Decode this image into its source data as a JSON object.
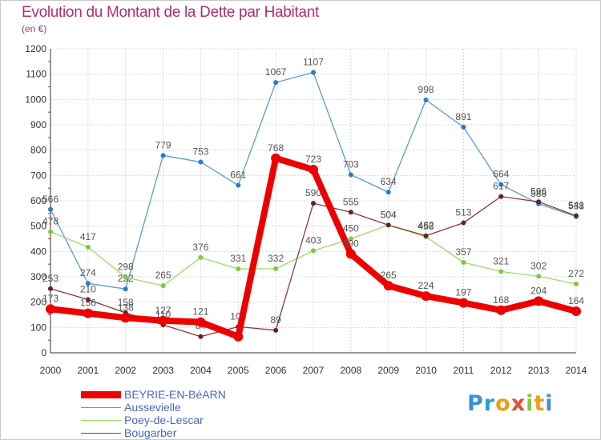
{
  "chart_data": {
    "type": "line",
    "title": "Evolution du Montant de la Dette par Habitant",
    "subtitle": "(en €)",
    "x": [
      "2000",
      "2001",
      "2002",
      "2003",
      "2004",
      "2005",
      "2006",
      "2007",
      "2008",
      "2009",
      "2010",
      "2011",
      "2012",
      "2013",
      "2014"
    ],
    "ylim": [
      0,
      1200
    ],
    "yticks": [
      0,
      100,
      200,
      300,
      400,
      500,
      600,
      700,
      800,
      900,
      1000,
      1100,
      1200
    ],
    "grid": true,
    "legend_position": "bottom-left",
    "series": [
      {
        "name": "Aussevielle",
        "color": "#5b9bd5",
        "point_color": "#2a7bc8",
        "values": [
          566,
          274,
          252,
          779,
          753,
          661,
          1067,
          1107,
          703,
          634,
          998,
          891,
          664,
          588,
          538
        ],
        "labels": [
          "566",
          "274",
          "252",
          "779",
          "753",
          "661",
          "1067",
          "1107",
          "703",
          "634",
          "998",
          "891",
          "664",
          "588",
          "538"
        ]
      },
      {
        "name": "Poey-de-Lescar",
        "color": "#99dd66",
        "point_color": "#7cc83f",
        "values": [
          478,
          417,
          298,
          265,
          376,
          331,
          332,
          403,
          450,
          504,
          458,
          357,
          321,
          302,
          272
        ],
        "labels": [
          "478",
          "417",
          "298",
          "265",
          "376",
          "331",
          "332",
          "403",
          "450",
          "504",
          "458",
          "357",
          "321",
          "302",
          "272"
        ]
      },
      {
        "name": "Bougarber",
        "color": "#8b3a3a",
        "point_color": "#6b1f1f",
        "values": [
          253,
          210,
          158,
          110,
          64,
          103,
          89,
          590,
          555,
          504,
          462,
          513,
          617,
          596,
          541
        ],
        "labels": [
          "253",
          "210",
          "158",
          "110",
          "64",
          "103",
          "89",
          "590",
          "555",
          "504",
          "462",
          "513",
          "617",
          "596",
          "541"
        ]
      },
      {
        "name": "BEYRIE-EN-BéARN",
        "color": "#ee0000",
        "point_color": "#ee0000",
        "values": [
          173,
          156,
          138,
          127,
          121,
          64,
          768,
          723,
          390,
          265,
          224,
          197,
          168,
          204,
          164
        ],
        "labels": [
          "173",
          "156",
          "138",
          "127",
          "121",
          "",
          "768",
          "723",
          "390",
          "265",
          "224",
          "197",
          "168",
          "204",
          "164"
        ]
      }
    ]
  },
  "legend": [
    {
      "label": "BEYRIE-EN-BéARN",
      "color": "#ee0000"
    },
    {
      "label": "Aussevielle",
      "color": "#5b9bd5"
    },
    {
      "label": "Poey-de-Lescar",
      "color": "#99dd66"
    },
    {
      "label": "Bougarber",
      "color": "#8b3a3a"
    }
  ],
  "brand": {
    "text": "Proxiti",
    "colors": [
      "#3b8fd8",
      "#2aa0c8",
      "#f39c12",
      "#e74c3c",
      "#8bc34a",
      "#f39c12",
      "#3b8fd8"
    ]
  }
}
